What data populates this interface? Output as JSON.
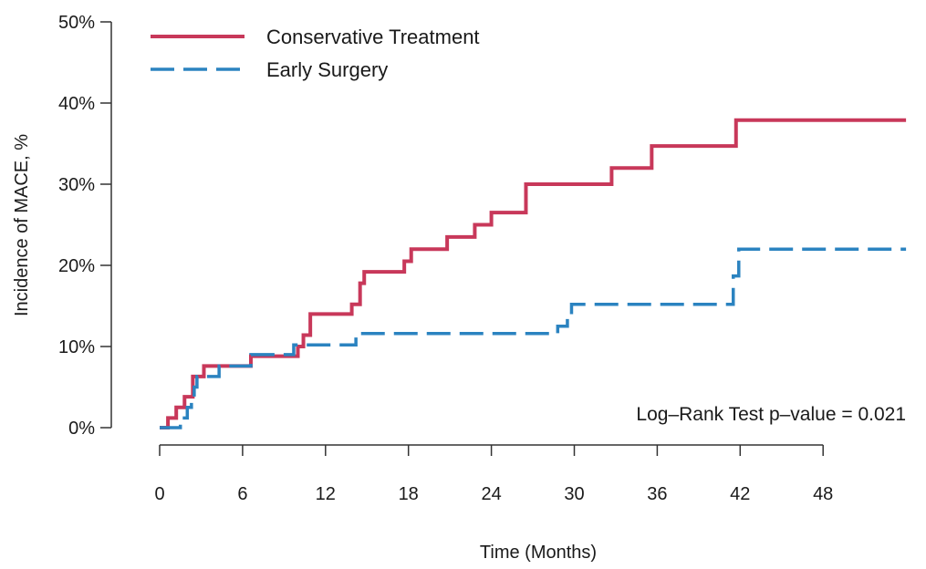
{
  "chart_data": {
    "type": "line",
    "step": true,
    "xlabel": "Time (Months)",
    "ylabel": "Incidence of MACE, %",
    "xlim": [
      0,
      54
    ],
    "ylim": [
      0,
      50
    ],
    "x_ticks": [
      0,
      6,
      12,
      18,
      24,
      30,
      36,
      42,
      48
    ],
    "x_tick_labels": [
      "0",
      "6",
      "12",
      "18",
      "24",
      "30",
      "36",
      "42",
      "48"
    ],
    "y_ticks": [
      0,
      10,
      20,
      30,
      40,
      50
    ],
    "y_tick_labels": [
      "0%",
      "10%",
      "20%",
      "30%",
      "40%",
      "50%"
    ],
    "grid": false,
    "legend": "top-left",
    "annotation": "Log–Rank Test p–value = 0.021",
    "series": [
      {
        "name": "Conservative Treatment",
        "color": "#c8385a",
        "dash": "solid",
        "points": [
          [
            0,
            0
          ],
          [
            0.6,
            1.2
          ],
          [
            1.2,
            2.5
          ],
          [
            1.8,
            3.8
          ],
          [
            2.4,
            6.3
          ],
          [
            3.2,
            7.6
          ],
          [
            6.6,
            8.8
          ],
          [
            10.0,
            10.0
          ],
          [
            10.4,
            11.4
          ],
          [
            10.9,
            14.0
          ],
          [
            13.9,
            15.2
          ],
          [
            14.5,
            17.8
          ],
          [
            14.8,
            19.2
          ],
          [
            17.7,
            20.5
          ],
          [
            18.2,
            22.0
          ],
          [
            20.8,
            23.5
          ],
          [
            22.8,
            25.0
          ],
          [
            24.0,
            26.5
          ],
          [
            26.5,
            30.0
          ],
          [
            32.7,
            32.0
          ],
          [
            35.6,
            34.7
          ],
          [
            41.7,
            37.9
          ],
          [
            54,
            37.9
          ]
        ]
      },
      {
        "name": "Early Surgery",
        "color": "#2b83c0",
        "dash": "dashed",
        "points": [
          [
            0,
            0
          ],
          [
            1.5,
            1.2
          ],
          [
            2.0,
            2.5
          ],
          [
            2.3,
            3.8
          ],
          [
            2.5,
            5.0
          ],
          [
            2.7,
            6.3
          ],
          [
            4.3,
            7.6
          ],
          [
            6.6,
            9.0
          ],
          [
            9.7,
            10.2
          ],
          [
            14.2,
            11.6
          ],
          [
            28.8,
            12.5
          ],
          [
            29.5,
            13.8
          ],
          [
            29.8,
            15.2
          ],
          [
            41.5,
            18.7
          ],
          [
            41.9,
            22.0
          ],
          [
            54,
            22.0
          ]
        ]
      }
    ]
  }
}
